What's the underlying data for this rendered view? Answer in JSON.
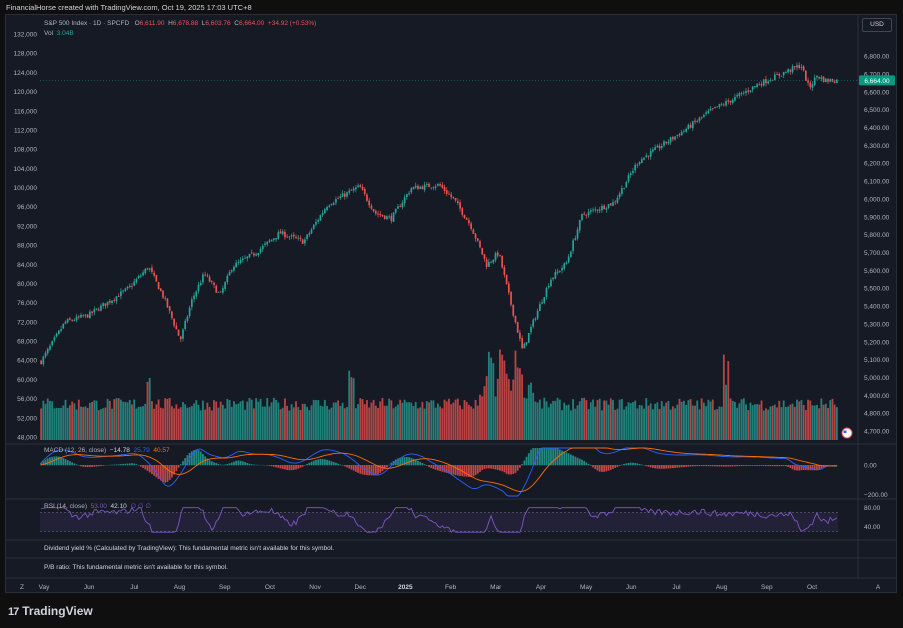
{
  "header": {
    "credit": "FinancialHorse created with TradingView.com, Oct 19, 2025 17:03 UTC+8"
  },
  "legend": {
    "symbol": "S&P 500 Index · 1D · SPCFD",
    "open_label": "O",
    "open": "6,611.90",
    "high_label": "H",
    "high": "6,678.88",
    "low_label": "L",
    "low": "6,603.76",
    "close_label": "C",
    "close": "6,664.00",
    "change": "+34.92 (+0.53%)",
    "vol_label": "Vol",
    "vol": "3.04B"
  },
  "currency_button": "USD",
  "price_tag": "6,664.00",
  "macd": {
    "label": "MACD (12, 26, close)",
    "hist": "−14.78",
    "macd": "25.79",
    "signal": "40.57"
  },
  "rsi": {
    "label": "RSI (14, close)",
    "value1": "53.00",
    "value2": "42.10",
    "zeros": "∅  ∅  ∅"
  },
  "fundamentals": [
    "Dividend yield % (Calculated by TradingView): This fundamental metric isn't available for this symbol.",
    "P/B ratio: This fundamental metric isn't available for this symbol."
  ],
  "footer": {
    "brand": "TradingView",
    "logo_mark": "17"
  },
  "icons": {
    "flag": "us-flag-icon",
    "scroll_left": "Z",
    "scroll_right": "A"
  },
  "colors": {
    "up": "#26a69a",
    "down": "#ef5350",
    "macd": "#2962ff",
    "signal": "#ff6d00",
    "rsi": "#7e57c2",
    "tag": "#089981"
  },
  "chart_data": [
    {
      "type": "candlestick",
      "title": "S&P 500 Index · 1D · SPCFD",
      "x_ticks": [
        "Vay",
        "Jun",
        "Jul",
        "Aug",
        "Sep",
        "Oct",
        "Nov",
        "Dec",
        "2025",
        "Feb",
        "Mar",
        "Apr",
        "May",
        "Jun",
        "Jul",
        "Aug",
        "Sep",
        "Oct"
      ],
      "left_axis_ticks": [
        "132,000",
        "128,000",
        "124,000",
        "120,000",
        "116,000",
        "112,000",
        "108,000",
        "104,000",
        "100,000",
        "96,000",
        "92,000",
        "88,000",
        "84,000",
        "80,000",
        "76,000",
        "72,000",
        "68,000",
        "64,000",
        "60,000",
        "56,000",
        "52,000",
        "48,000"
      ],
      "right_axis_ticks": [
        "6,800.00",
        "6,700.00",
        "6,600.00",
        "6,500.00",
        "6,400.00",
        "6,300.00",
        "6,200.00",
        "6,100.00",
        "6,000.00",
        "5,900.00",
        "5,800.00",
        "5,700.00",
        "5,600.00",
        "5,500.00",
        "5,400.00",
        "5,300.00",
        "5,200.00",
        "5,100.00",
        "5,000.00",
        "4,900.00",
        "4,800.00",
        "4,700.00"
      ],
      "ylim": [
        4650,
        6890
      ],
      "close_path": [
        {
          "x": 0.0,
          "y": 5090
        },
        {
          "x": 0.03,
          "y": 5310
        },
        {
          "x": 0.06,
          "y": 5350
        },
        {
          "x": 0.09,
          "y": 5440
        },
        {
          "x": 0.11,
          "y": 5500
        },
        {
          "x": 0.135,
          "y": 5620
        },
        {
          "x": 0.155,
          "y": 5440
        },
        {
          "x": 0.175,
          "y": 5210
        },
        {
          "x": 0.19,
          "y": 5440
        },
        {
          "x": 0.205,
          "y": 5580
        },
        {
          "x": 0.225,
          "y": 5460
        },
        {
          "x": 0.24,
          "y": 5620
        },
        {
          "x": 0.27,
          "y": 5700
        },
        {
          "x": 0.3,
          "y": 5810
        },
        {
          "x": 0.33,
          "y": 5760
        },
        {
          "x": 0.36,
          "y": 5970
        },
        {
          "x": 0.4,
          "y": 6070
        },
        {
          "x": 0.42,
          "y": 5920
        },
        {
          "x": 0.44,
          "y": 5890
        },
        {
          "x": 0.465,
          "y": 6060
        },
        {
          "x": 0.5,
          "y": 6080
        },
        {
          "x": 0.52,
          "y": 5990
        },
        {
          "x": 0.54,
          "y": 5850
        },
        {
          "x": 0.56,
          "y": 5630
        },
        {
          "x": 0.575,
          "y": 5700
        },
        {
          "x": 0.59,
          "y": 5420
        },
        {
          "x": 0.605,
          "y": 5150
        },
        {
          "x": 0.62,
          "y": 5330
        },
        {
          "x": 0.64,
          "y": 5550
        },
        {
          "x": 0.66,
          "y": 5640
        },
        {
          "x": 0.68,
          "y": 5910
        },
        {
          "x": 0.72,
          "y": 5980
        },
        {
          "x": 0.75,
          "y": 6210
        },
        {
          "x": 0.78,
          "y": 6300
        },
        {
          "x": 0.81,
          "y": 6390
        },
        {
          "x": 0.84,
          "y": 6490
        },
        {
          "x": 0.87,
          "y": 6560
        },
        {
          "x": 0.9,
          "y": 6640
        },
        {
          "x": 0.93,
          "y": 6700
        },
        {
          "x": 0.955,
          "y": 6750
        },
        {
          "x": 0.965,
          "y": 6620
        },
        {
          "x": 0.975,
          "y": 6690
        },
        {
          "x": 0.985,
          "y": 6664
        }
      ]
    },
    {
      "type": "bar",
      "title": "Vol",
      "y_unit": "volume (relative)",
      "spikes": [
        {
          "x": 0.135,
          "y": 1.0
        },
        {
          "x": 0.39,
          "y": 0.9
        },
        {
          "x": 0.565,
          "y": 1.0
        },
        {
          "x": 0.58,
          "y": 1.0
        },
        {
          "x": 0.6,
          "y": 1.0
        },
        {
          "x": 0.86,
          "y": 1.0
        }
      ]
    },
    {
      "type": "line",
      "title": "MACD (12, 26, close)",
      "right_axis_ticks": [
        "0.00",
        "−200.00"
      ],
      "series": [
        {
          "name": "MACD",
          "values": [
            25.79
          ]
        },
        {
          "name": "Signal",
          "values": [
            40.57
          ]
        },
        {
          "name": "Histogram",
          "values": [
            -14.78
          ]
        }
      ]
    },
    {
      "type": "line",
      "title": "RSI (14, close)",
      "right_axis_ticks": [
        "80.00",
        "40.00"
      ],
      "ylim": [
        20,
        90
      ],
      "bands": [
        30,
        70
      ]
    }
  ]
}
